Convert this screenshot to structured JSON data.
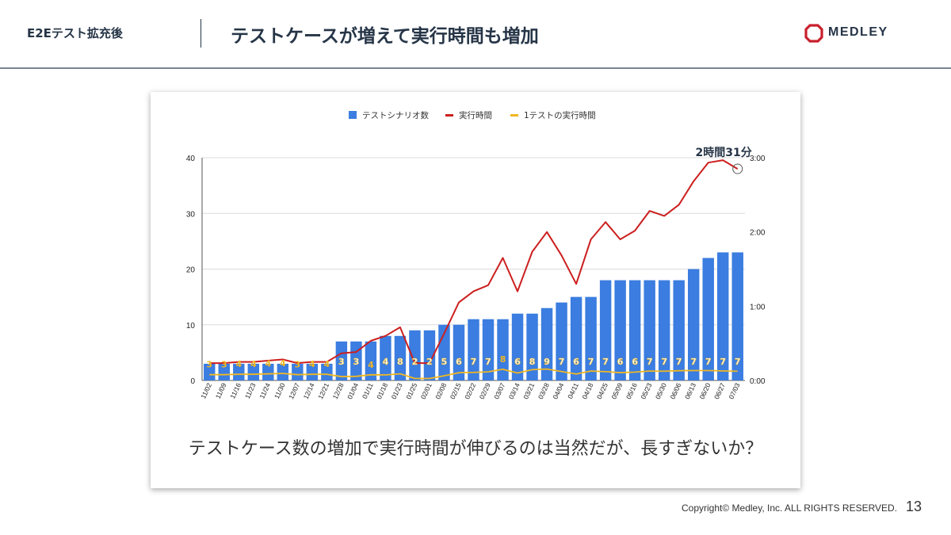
{
  "header": {
    "section_label": "E2Eテスト拡充後",
    "title": "テストケースが増えて実行時間も増加",
    "logo_text": "MEDLEY",
    "brand_color": "#c8202c"
  },
  "chart_data": {
    "type": "bar+line",
    "categories": [
      "11/02",
      "11/09",
      "11/16",
      "11/23",
      "11/24",
      "11/30",
      "12/07",
      "12/14",
      "12/21",
      "12/28",
      "01/04",
      "01/11",
      "01/18",
      "01/23",
      "01/25",
      "02/01",
      "02/08",
      "02/15",
      "02/22",
      "02/29",
      "03/07",
      "03/14",
      "03/21",
      "03/28",
      "04/04",
      "04/11",
      "04/18",
      "04/25",
      "05/09",
      "05/16",
      "05/23",
      "05/30",
      "06/06",
      "06/13",
      "06/20",
      "06/27",
      "07/03"
    ],
    "legend": [
      "テストシナリオ数",
      "実行時間",
      "1テストの実行時間"
    ],
    "colors": {
      "bars": "#3b7de0",
      "duration": "#cc1f1f",
      "per_test": "#f0b722"
    },
    "bars": {
      "name": "テストシナリオ数",
      "values": [
        3,
        3,
        3,
        3,
        3,
        3,
        3,
        3,
        3,
        7,
        7,
        7,
        8,
        8,
        9,
        9,
        10,
        10,
        11,
        11,
        11,
        12,
        12,
        13,
        14,
        15,
        15,
        18,
        18,
        18,
        18,
        18,
        18,
        20,
        22,
        23,
        23
      ]
    },
    "duration": {
      "name": "実行時間",
      "values_minutes": [
        14,
        14,
        15,
        15,
        16,
        17,
        14,
        15,
        15,
        22,
        23,
        32,
        36,
        43,
        14,
        14,
        38,
        63,
        72,
        77,
        99,
        72,
        104,
        120,
        101,
        78,
        114,
        128,
        114,
        121,
        137,
        133,
        142,
        161,
        176,
        178,
        171
      ]
    },
    "per_test": {
      "name": "1テストの実行時間",
      "values_minutes": [
        4.7,
        4.7,
        5,
        5,
        5.3,
        5.7,
        4.7,
        5,
        5,
        3.1,
        3.3,
        4.6,
        4.5,
        5.4,
        1.6,
        1.6,
        3.8,
        6.3,
        6.5,
        7,
        9,
        6,
        8.7,
        9.2,
        7.2,
        5.2,
        7.6,
        7.1,
        6.3,
        6.7,
        7.6,
        7.4,
        7.9,
        8,
        8,
        7.7,
        7.4
      ]
    },
    "bar_labels": [
      "3",
      "3",
      "4",
      "4",
      "4",
      "4",
      "3",
      "4",
      "4",
      "3",
      "3",
      "4",
      "4",
      "8",
      "2",
      "2",
      "5",
      "6",
      "7",
      "7",
      "8",
      "6",
      "8",
      "9",
      "7",
      "6",
      "7",
      "7",
      "6",
      "6",
      "7",
      "7",
      "7",
      "7",
      "7",
      "7",
      "7"
    ],
    "bar_label_styles": [
      "y",
      "y",
      "y",
      "y",
      "y",
      "y",
      "y",
      "y",
      "y",
      "w",
      "w",
      "y",
      "w",
      "w",
      "w",
      "w",
      "w",
      "w",
      "w",
      "w",
      "y",
      "w",
      "w",
      "w",
      "w",
      "w",
      "w",
      "w",
      "w",
      "w",
      "w",
      "w",
      "w",
      "w",
      "w",
      "w",
      "w"
    ],
    "y_left": {
      "min": 0,
      "max": 40,
      "ticks": [
        "0",
        "10",
        "20",
        "30",
        "40"
      ]
    },
    "y_right": {
      "min": 0,
      "max": 180,
      "ticks": [
        "0:00",
        "1:00",
        "2:00",
        "3:00"
      ]
    },
    "annotation": "2時間31分",
    "grid": true,
    "legend_position": "top"
  },
  "caption": "テストケース数の増加で実行時間が伸びるのは当然だが、長すぎないか？",
  "footer": {
    "copyright": "Copyright© Medley, Inc. ALL RIGHTS RESERVED.",
    "page_number": "13"
  }
}
